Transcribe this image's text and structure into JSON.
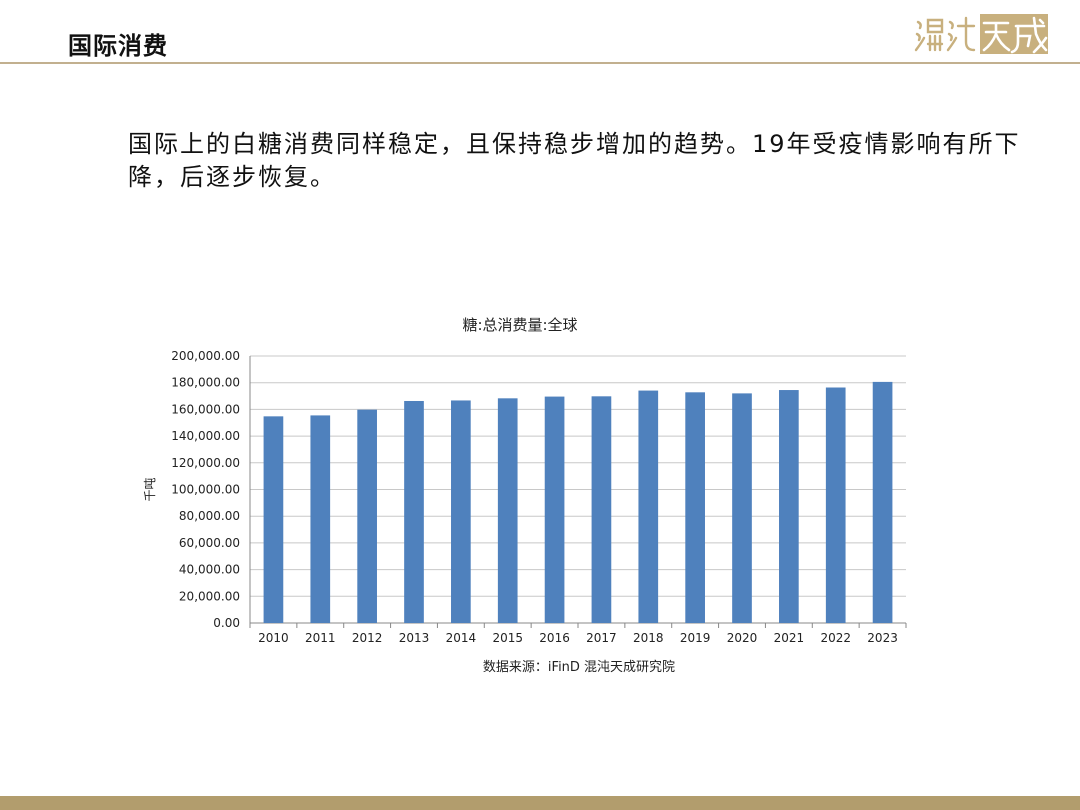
{
  "header": {
    "title": "国际消费",
    "logo_text": "混沌天成"
  },
  "body_text": "国际上的白糖消费同样稳定，且保持稳步增加的趋势。19年受疫情影响有所下降，后逐步恢复。",
  "source": "数据来源：iFinD 混沌天成研究院",
  "colors": {
    "bar": "#4f81bd",
    "header_rule": "#c2b08f",
    "footer": "#b29d6d",
    "logo": "#c8b07e"
  },
  "chart_data": {
    "type": "bar",
    "title": "糖:总消费量:全球",
    "xlabel": "",
    "ylabel": "千吨",
    "categories": [
      "2010",
      "2011",
      "2012",
      "2013",
      "2014",
      "2015",
      "2016",
      "2017",
      "2018",
      "2019",
      "2020",
      "2021",
      "2022",
      "2023"
    ],
    "series": [
      {
        "values": [
          154800,
          155500,
          159800,
          166300,
          166700,
          168300,
          169600,
          169800,
          174100,
          172800,
          172000,
          174500,
          176400,
          180600
        ]
      }
    ],
    "ylim": [
      0,
      200000
    ],
    "yticks": [
      "0.00",
      "20,000.00",
      "40,000.00",
      "60,000.00",
      "80,000.00",
      "100,000.00",
      "120,000.00",
      "140,000.00",
      "160,000.00",
      "180,000.00",
      "200,000.00"
    ],
    "grid": true,
    "legend": "none"
  }
}
